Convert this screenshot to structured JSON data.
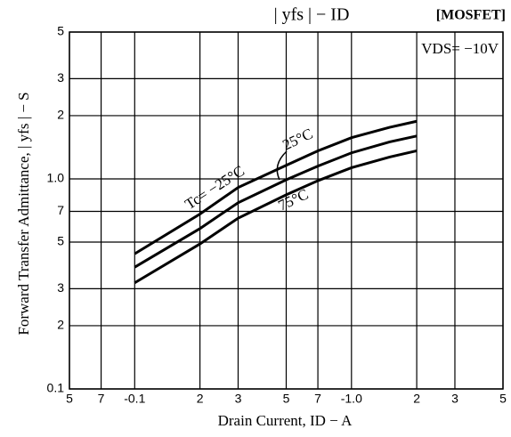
{
  "chart_data": {
    "type": "line",
    "title": "| yfs |  −  ID",
    "tag": "[MOSFET]",
    "condition": "VDS= −10V",
    "xlabel": "Drain Current, ID − A",
    "ylabel": "Forward Transfer Admittance, | yfs | − S",
    "log_x": true,
    "log_y": true,
    "grid": true,
    "xlim": [
      0.05,
      5
    ],
    "xticks": [
      {
        "value": 0.05,
        "label": "5"
      },
      {
        "value": 0.07,
        "label": "7"
      },
      {
        "value": 0.1,
        "label": "-0.1"
      },
      {
        "value": 0.2,
        "label": "2"
      },
      {
        "value": 0.3,
        "label": "3"
      },
      {
        "value": 0.5,
        "label": "5"
      },
      {
        "value": 0.7,
        "label": "7"
      },
      {
        "value": 1,
        "label": "-1.0"
      },
      {
        "value": 2,
        "label": "2"
      },
      {
        "value": 3,
        "label": "3"
      },
      {
        "value": 5,
        "label": "5"
      }
    ],
    "ylim": [
      0.1,
      5
    ],
    "yticks": [
      0.1,
      {
        "value": 0.2,
        "label": "2"
      },
      {
        "value": 0.3,
        "label": "3"
      },
      {
        "value": 0.5,
        "label": "5"
      },
      {
        "value": 0.7,
        "label": "7"
      },
      {
        "value": 1,
        "label": "1.0"
      },
      2,
      3,
      5
    ],
    "x": [
      0.1,
      0.2,
      0.3,
      0.5,
      0.7,
      1,
      1.5,
      2
    ],
    "series": [
      {
        "name": "Tc= −25°C",
        "color": "#000000",
        "values": [
          0.44,
          0.68,
          0.91,
          1.16,
          1.36,
          1.57,
          1.76,
          1.88
        ]
      },
      {
        "name": "25°C",
        "color": "#000000",
        "values": [
          0.38,
          0.58,
          0.77,
          0.99,
          1.15,
          1.33,
          1.5,
          1.6
        ]
      },
      {
        "name": "75°C",
        "color": "#000000",
        "values": [
          0.32,
          0.49,
          0.65,
          0.84,
          0.98,
          1.13,
          1.27,
          1.36
        ]
      }
    ]
  }
}
